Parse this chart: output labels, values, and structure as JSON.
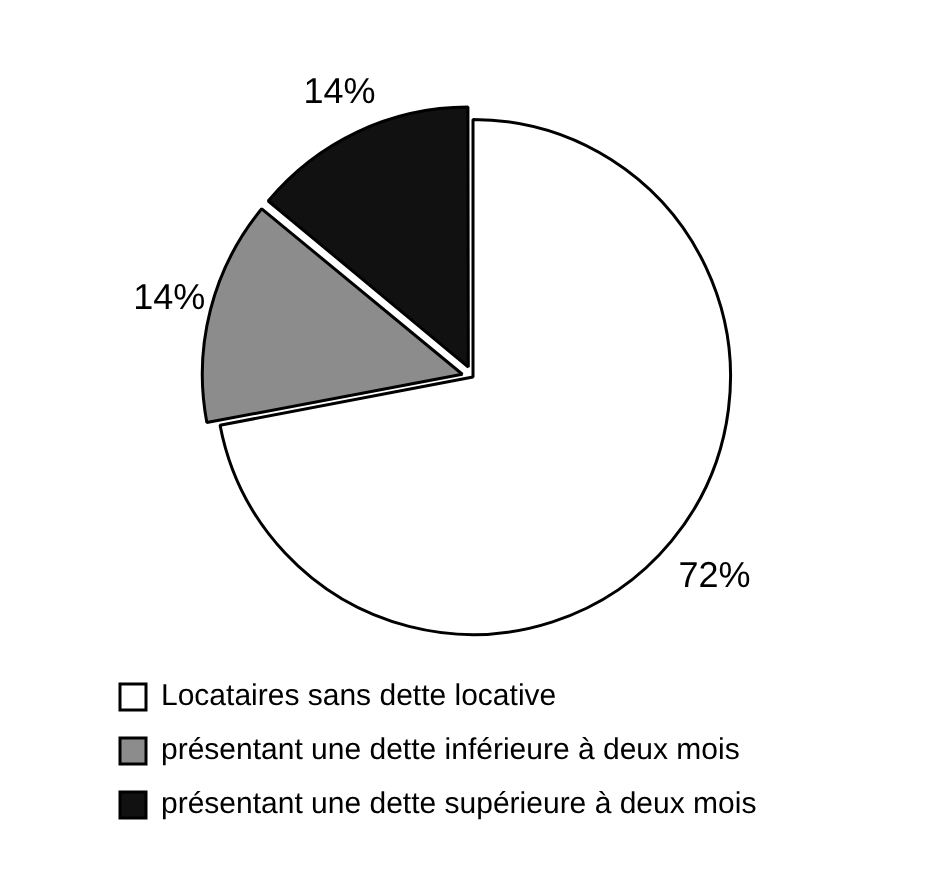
{
  "chart_data": {
    "type": "pie",
    "categories": [
      "Locataires sans dette locative",
      "présentant une dette inférieure à deux mois",
      "présentant une dette supérieure à deux mois"
    ],
    "values": [
      72,
      14,
      14
    ],
    "value_labels": [
      "72%",
      "14%",
      "14%"
    ],
    "colors": [
      "#ffffff",
      "#8c8c8c",
      "#111111"
    ],
    "legend": "bottom"
  }
}
